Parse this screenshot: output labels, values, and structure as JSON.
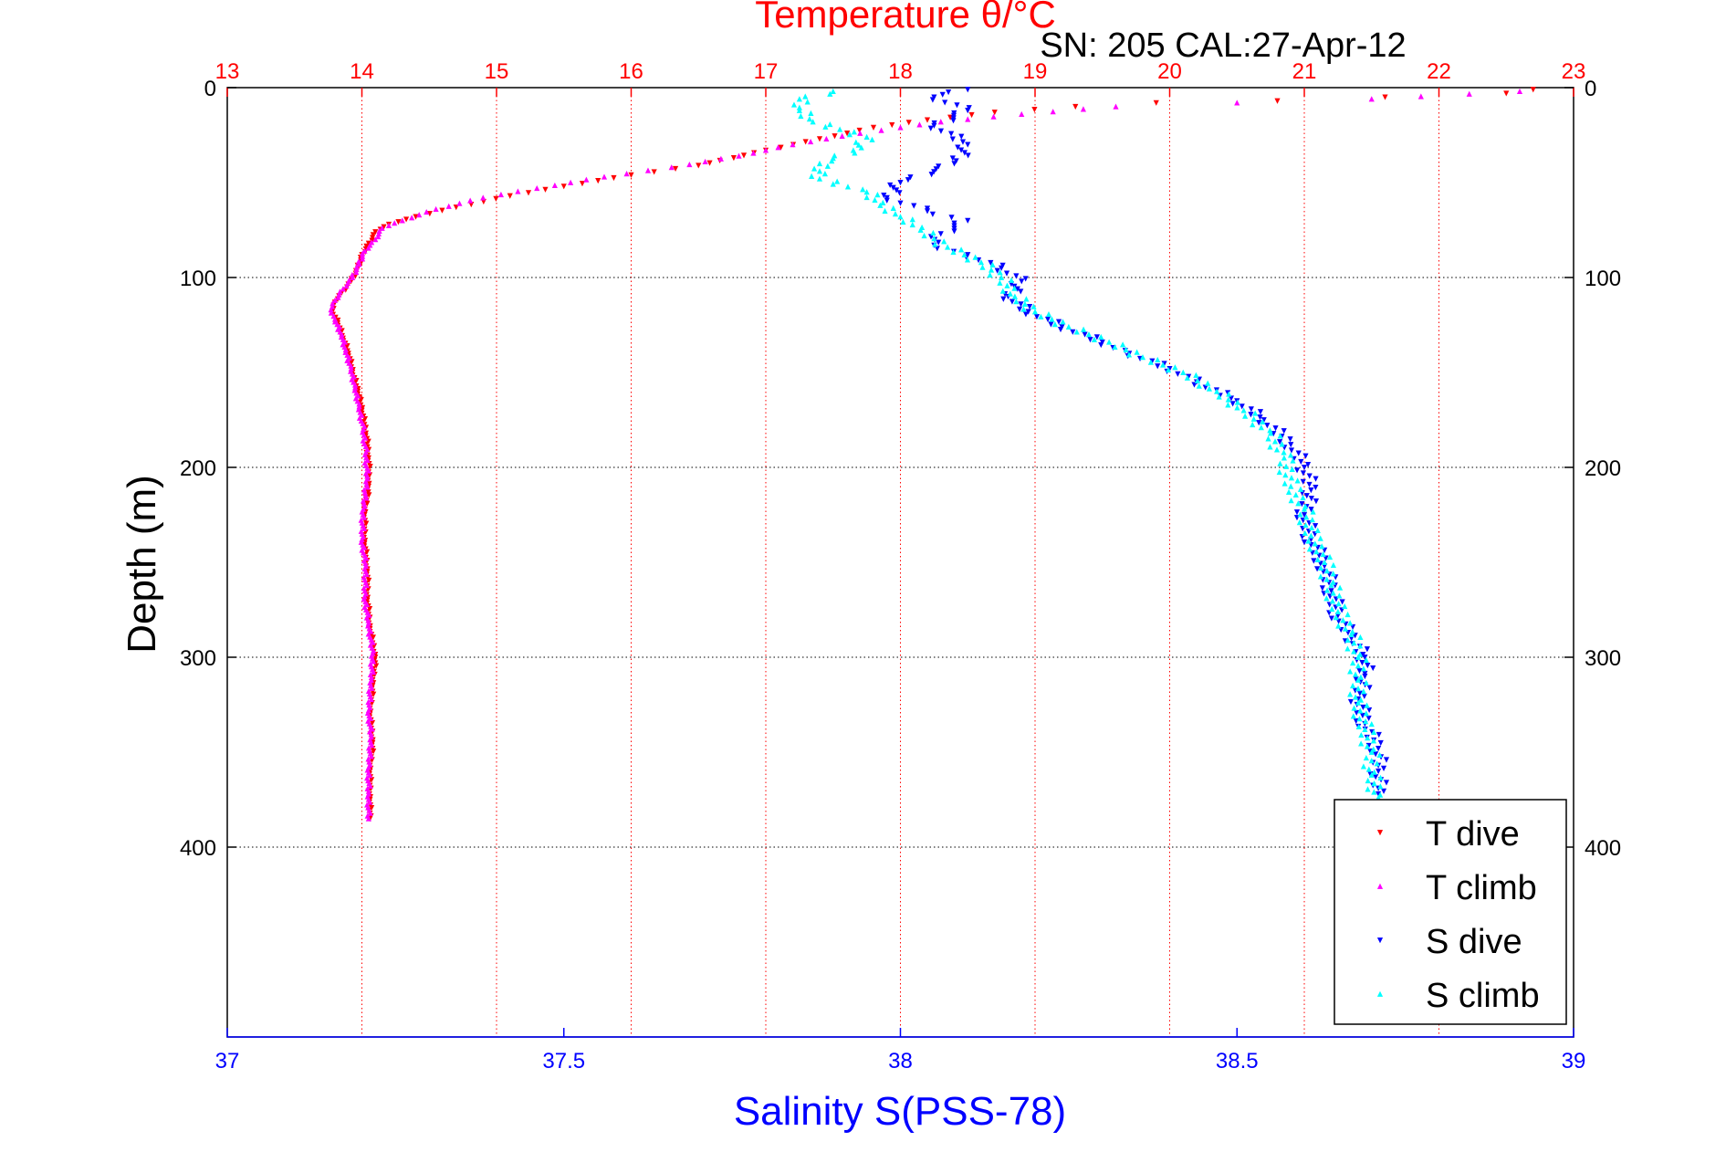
{
  "chart_data": {
    "type": "scatter",
    "title": "Temperature θ/°C",
    "subtitle": "SN: 205  CAL:27-Apr-12",
    "xlabel_bottom": "Salinity S(PSS-78)",
    "xlabel_top": "Temperature θ/°C",
    "ylabel": "Depth (m)",
    "axes": {
      "salinity": {
        "lim": [
          37,
          39
        ],
        "ticks": [
          37,
          37.5,
          38,
          38.5,
          39
        ],
        "tick_labels": [
          "37",
          "37.5",
          "38",
          "38.5",
          "39"
        ]
      },
      "temperature": {
        "lim": [
          13,
          23
        ],
        "ticks": [
          13,
          14,
          15,
          16,
          17,
          18,
          19,
          20,
          21,
          22,
          23
        ],
        "tick_labels": [
          "13",
          "14",
          "15",
          "16",
          "17",
          "18",
          "19",
          "20",
          "21",
          "22",
          "23"
        ]
      },
      "depth": {
        "lim": [
          0,
          500
        ],
        "reversed": true,
        "ticks": [
          0,
          100,
          200,
          300,
          400
        ],
        "tick_labels": [
          "0",
          "100",
          "200",
          "300",
          "400"
        ]
      }
    },
    "grid": true,
    "legend_position": "bottom-right",
    "series": [
      {
        "name": "T dive",
        "axis": "temperature",
        "marker": "triangle-down",
        "color": "#ff0000",
        "points": [
          [
            22.7,
            1
          ],
          [
            22.5,
            3
          ],
          [
            21.6,
            5
          ],
          [
            20.8,
            7
          ],
          [
            19.9,
            8
          ],
          [
            19.3,
            10
          ],
          [
            18.7,
            13
          ],
          [
            18.2,
            17
          ],
          [
            17.8,
            21
          ],
          [
            17.4,
            27
          ],
          [
            17.0,
            33
          ],
          [
            16.5,
            41
          ],
          [
            16.0,
            46
          ],
          [
            15.5,
            52
          ],
          [
            15.1,
            57
          ],
          [
            14.7,
            63
          ],
          [
            14.4,
            68
          ],
          [
            14.2,
            72
          ],
          [
            14.1,
            76
          ],
          [
            14.05,
            82
          ],
          [
            14.0,
            88
          ],
          [
            13.97,
            95
          ],
          [
            13.92,
            102
          ],
          [
            13.85,
            108
          ],
          [
            13.8,
            113
          ],
          [
            13.78,
            118
          ],
          [
            13.82,
            124
          ],
          [
            13.86,
            132
          ],
          [
            13.9,
            140
          ],
          [
            13.93,
            150
          ],
          [
            13.97,
            160
          ],
          [
            14.0,
            170
          ],
          [
            14.03,
            182
          ],
          [
            14.05,
            195
          ],
          [
            14.05,
            210
          ],
          [
            14.02,
            225
          ],
          [
            14.02,
            240
          ],
          [
            14.04,
            255
          ],
          [
            14.04,
            270
          ],
          [
            14.06,
            285
          ],
          [
            14.1,
            300
          ],
          [
            14.08,
            315
          ],
          [
            14.06,
            330
          ],
          [
            14.08,
            345
          ],
          [
            14.06,
            360
          ],
          [
            14.06,
            375
          ],
          [
            14.06,
            385
          ]
        ]
      },
      {
        "name": "T climb",
        "axis": "temperature",
        "marker": "triangle-up",
        "color": "#ff00ff",
        "points": [
          [
            22.6,
            2
          ],
          [
            21.5,
            6
          ],
          [
            20.5,
            8
          ],
          [
            19.6,
            10
          ],
          [
            18.9,
            14
          ],
          [
            18.3,
            18
          ],
          [
            17.7,
            24
          ],
          [
            17.2,
            30
          ],
          [
            16.8,
            36
          ],
          [
            16.3,
            42
          ],
          [
            15.8,
            47
          ],
          [
            15.3,
            53
          ],
          [
            14.9,
            58
          ],
          [
            14.55,
            64
          ],
          [
            14.3,
            70
          ],
          [
            14.15,
            74
          ],
          [
            14.1,
            80
          ],
          [
            14.02,
            86
          ],
          [
            13.98,
            93
          ],
          [
            13.93,
            100
          ],
          [
            13.86,
            106
          ],
          [
            13.8,
            112
          ],
          [
            13.77,
            117
          ],
          [
            13.8,
            122
          ],
          [
            13.85,
            130
          ],
          [
            13.88,
            138
          ],
          [
            13.92,
            148
          ],
          [
            13.95,
            158
          ],
          [
            13.98,
            168
          ],
          [
            14.01,
            180
          ],
          [
            14.03,
            192
          ],
          [
            14.04,
            206
          ],
          [
            14.01,
            222
          ],
          [
            14.0,
            238
          ],
          [
            14.03,
            252
          ],
          [
            14.02,
            268
          ],
          [
            14.05,
            282
          ],
          [
            14.08,
            298
          ],
          [
            14.07,
            312
          ],
          [
            14.05,
            328
          ],
          [
            14.07,
            342
          ],
          [
            14.05,
            358
          ],
          [
            14.05,
            372
          ],
          [
            14.05,
            385
          ]
        ]
      },
      {
        "name": "S dive",
        "axis": "salinity",
        "marker": "triangle-down",
        "color": "#0000ff",
        "points": [
          [
            38.1,
            1
          ],
          [
            38.05,
            5
          ],
          [
            38.1,
            12
          ],
          [
            38.05,
            20
          ],
          [
            38.1,
            30
          ],
          [
            38.08,
            40
          ],
          [
            38.0,
            50
          ],
          [
            37.98,
            58
          ],
          [
            38.04,
            65
          ],
          [
            38.1,
            70
          ],
          [
            38.06,
            77
          ],
          [
            38.05,
            83
          ],
          [
            38.1,
            88
          ],
          [
            38.15,
            95
          ],
          [
            38.18,
            102
          ],
          [
            38.16,
            110
          ],
          [
            38.19,
            118
          ],
          [
            38.24,
            126
          ],
          [
            38.3,
            134
          ],
          [
            38.34,
            140
          ],
          [
            38.4,
            148
          ],
          [
            38.44,
            155
          ],
          [
            38.5,
            165
          ],
          [
            38.54,
            175
          ],
          [
            38.58,
            188
          ],
          [
            38.6,
            200
          ],
          [
            38.61,
            212
          ],
          [
            38.6,
            225
          ],
          [
            38.61,
            238
          ],
          [
            38.63,
            252
          ],
          [
            38.64,
            265
          ],
          [
            38.65,
            278
          ],
          [
            38.67,
            290
          ],
          [
            38.69,
            300
          ],
          [
            38.69,
            310
          ],
          [
            38.68,
            322
          ],
          [
            38.69,
            335
          ],
          [
            38.71,
            348
          ],
          [
            38.71,
            360
          ],
          [
            38.71,
            372
          ]
        ]
      },
      {
        "name": "S climb",
        "axis": "salinity",
        "marker": "triangle-up",
        "color": "#00ffff",
        "points": [
          [
            37.9,
            2
          ],
          [
            37.85,
            6
          ],
          [
            37.85,
            12
          ],
          [
            37.87,
            18
          ],
          [
            37.95,
            26
          ],
          [
            37.93,
            33
          ],
          [
            37.88,
            40
          ],
          [
            37.88,
            48
          ],
          [
            37.95,
            55
          ],
          [
            37.97,
            62
          ],
          [
            38.0,
            68
          ],
          [
            38.03,
            75
          ],
          [
            38.07,
            84
          ],
          [
            38.12,
            92
          ],
          [
            38.15,
            100
          ],
          [
            38.17,
            110
          ],
          [
            38.2,
            118
          ],
          [
            38.25,
            126
          ],
          [
            38.31,
            134
          ],
          [
            38.36,
            142
          ],
          [
            38.42,
            150
          ],
          [
            38.47,
            160
          ],
          [
            38.51,
            170
          ],
          [
            38.55,
            182
          ],
          [
            38.57,
            195
          ],
          [
            38.58,
            210
          ],
          [
            38.6,
            222
          ],
          [
            38.61,
            236
          ],
          [
            38.63,
            250
          ],
          [
            38.64,
            262
          ],
          [
            38.65,
            276
          ],
          [
            38.67,
            288
          ],
          [
            38.68,
            300
          ],
          [
            38.68,
            312
          ],
          [
            38.68,
            324
          ],
          [
            38.69,
            338
          ],
          [
            38.7,
            350
          ],
          [
            38.7,
            362
          ],
          [
            38.71,
            374
          ]
        ]
      }
    ]
  }
}
